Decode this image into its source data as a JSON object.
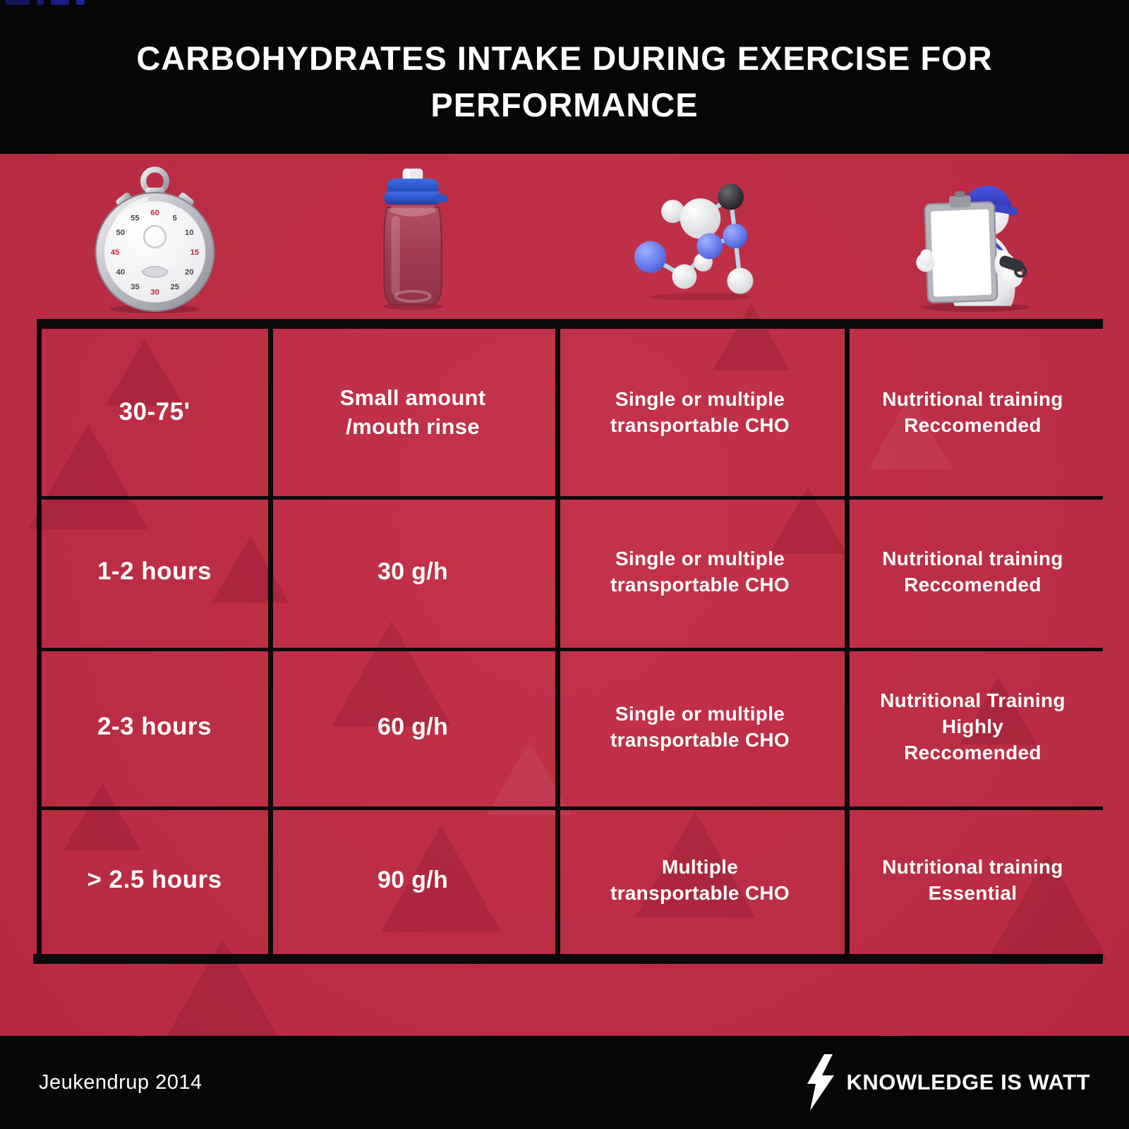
{
  "header": {
    "title": "CARBOHYDRATES INTAKE DURING EXERCISE FOR\nPERFORMANCE"
  },
  "chart_data": {
    "type": "table",
    "title": "CARBOHYDRATES INTAKE DURING EXERCISE FOR PERFORMANCE",
    "column_icons": [
      "stopwatch-icon",
      "sports-bottle-icon",
      "cho-molecule-icon",
      "coach-clipboard-icon"
    ],
    "columns_meaning_shown_as_icons_only": true,
    "rows": [
      [
        "30-75'",
        "Small amount\n/mouth rinse",
        "Single or multiple\ntransportable CHO",
        "Nutritional training\nReccomended"
      ],
      [
        "1-2 hours",
        "30 g/h",
        "Single or multiple\ntransportable CHO",
        "Nutritional training\nReccomended"
      ],
      [
        "2-3 hours",
        "60 g/h",
        "Single or multiple\ntransportable CHO",
        "Nutritional Training\nHighly\nReccomended"
      ],
      [
        "> 2.5 hours",
        "90 g/h",
        "Multiple\ntransportable CHO",
        "Nutritional training\nEssential"
      ]
    ],
    "source": "Jeukendrup 2014",
    "grid": true,
    "legend_position": "none"
  },
  "icons": {
    "stopwatch": {
      "ticks": [
        "60",
        "5",
        "10",
        "15",
        "20",
        "25",
        "30",
        "35",
        "40",
        "45",
        "50",
        "55"
      ],
      "red_ticks": [
        "60",
        "15",
        "30",
        "45"
      ]
    }
  },
  "footer": {
    "citation": "Jeukendrup 2014",
    "brand": "KNOWLEDGE IS WATT",
    "brand_icon": "lightning-bolt-icon"
  },
  "colors": {
    "background_red": "#C22C44",
    "panel_black": "#060606",
    "grid_line": "#0A0A0A",
    "text_white": "#FFFFFF",
    "bottle_cap_blue": "#2B55C8",
    "coach_cap_blue": "#3A46C8",
    "molecule_bond_blue": "#B7E3F2"
  }
}
